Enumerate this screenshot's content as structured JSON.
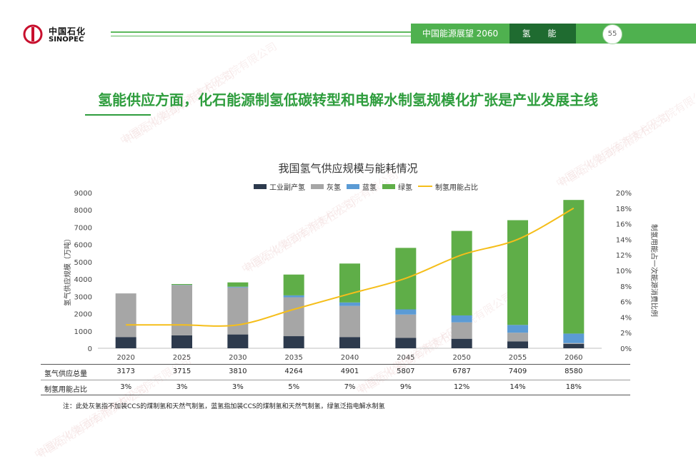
{
  "brand": {
    "cn": "中国石化",
    "en": "SINOPEC"
  },
  "header": {
    "report_title": "中国能源展望 2060",
    "section": "氢 能",
    "page_number": "55"
  },
  "headline": "氢能供应方面，化石能源制氢低碳转型和电解水制氢规模化扩张是产业发展主线",
  "colors": {
    "industrial": "#2d3a4d",
    "grey": "#a6a6a6",
    "blue": "#5b9bd5",
    "green": "#5fae48",
    "line": "#f5be1a"
  },
  "chart_data": {
    "type": "bar",
    "title": "我国氢气供应规模与能耗情况",
    "categories": [
      "2020",
      "2025",
      "2030",
      "2035",
      "2040",
      "2045",
      "2050",
      "2055",
      "2060"
    ],
    "series": [
      {
        "name": "工业副产氢",
        "values": [
          650,
          750,
          800,
          700,
          650,
          600,
          550,
          400,
          250
        ]
      },
      {
        "name": "灰氢",
        "values": [
          2523,
          2900,
          2720,
          2250,
          1800,
          1350,
          950,
          500,
          50
        ]
      },
      {
        "name": "蓝氢",
        "values": [
          0,
          15,
          40,
          110,
          200,
          300,
          400,
          450,
          550
        ]
      },
      {
        "name": "绿氢",
        "values": [
          0,
          50,
          250,
          1204,
          2251,
          3557,
          4887,
          6059,
          7730
        ]
      }
    ],
    "line_series": {
      "name": "制氢用能占比",
      "values": [
        3,
        3,
        3,
        5,
        7,
        9,
        12,
        14,
        18
      ]
    },
    "ylabel": "氢气供应规模（万吨）",
    "y2label": "制氢用能占一次能源消费比例",
    "ylim": [
      0,
      9000
    ],
    "y2lim": [
      0,
      20
    ],
    "yticks": [
      "0",
      "1000",
      "2000",
      "3000",
      "4000",
      "5000",
      "6000",
      "7000",
      "8000",
      "9000"
    ],
    "y2ticks": [
      "0%",
      "2%",
      "4%",
      "6%",
      "8%",
      "10%",
      "12%",
      "14%",
      "16%",
      "18%",
      "20%"
    ],
    "legend_position": "top",
    "grid": false,
    "table": {
      "rows": [
        {
          "label": "氢气供应总量",
          "values": [
            "3173",
            "3715",
            "3810",
            "4264",
            "4901",
            "5807",
            "6787",
            "7409",
            "8580"
          ]
        },
        {
          "label": "制氢用能占比",
          "values": [
            "3%",
            "3%",
            "3%",
            "5%",
            "7%",
            "9%",
            "12%",
            "14%",
            "18%"
          ]
        }
      ]
    }
  },
  "note": "注：此处灰氢指不加装CCS的煤制氢和天然气制氢，蓝氢指加装CCS的煤制氢和天然气制氢，绿氢泛指电解水制氢",
  "watermark_lines": [
    "中国石化集团经济技术研究院有限公司",
    "中国石化咨询有限责任公司"
  ]
}
